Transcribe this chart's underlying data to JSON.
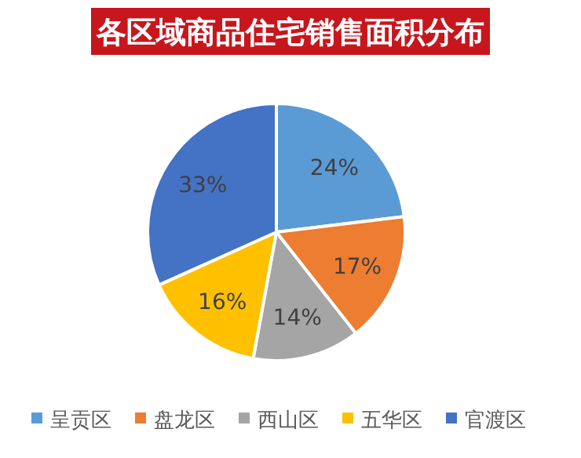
{
  "chart_data": {
    "type": "pie",
    "title": "各区域商品住宅销售面积分布",
    "categories": [
      "呈贡区",
      "盘龙区",
      "西山区",
      "五华区",
      "官渡区"
    ],
    "values": [
      24,
      17,
      14,
      16,
      33
    ],
    "value_labels": [
      "24%",
      "17%",
      "14%",
      "16%",
      "33%"
    ],
    "colors": [
      "#5b9bd5",
      "#ed7d31",
      "#a5a5a5",
      "#ffc000",
      "#4472c4"
    ],
    "legend": "bottom"
  }
}
